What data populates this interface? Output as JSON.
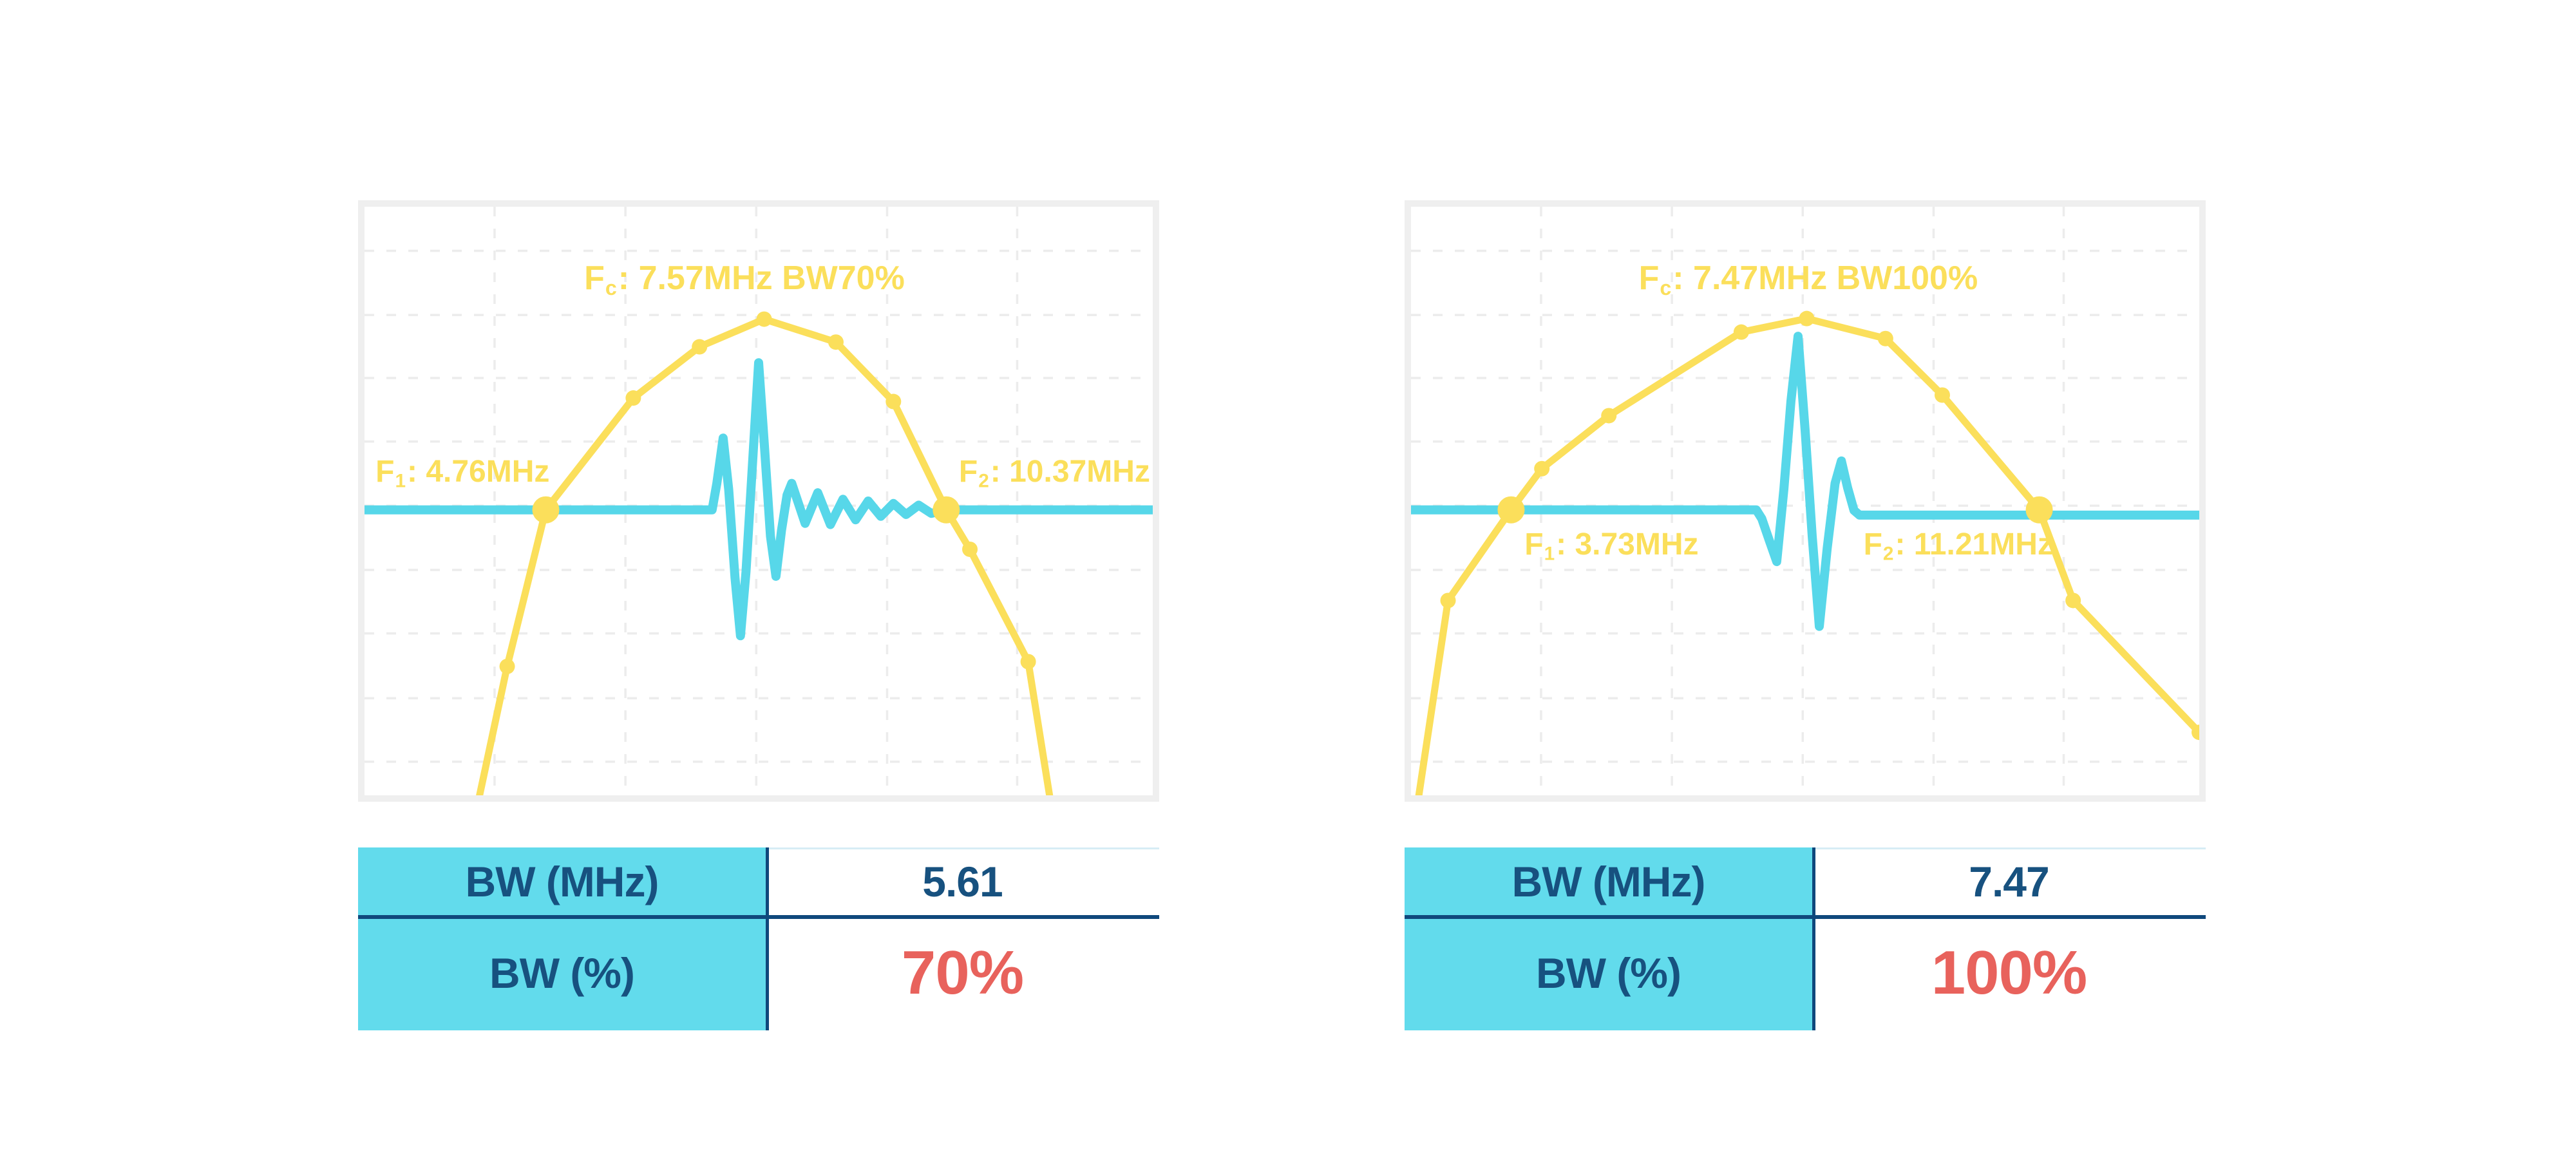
{
  "colors": {
    "yellow": "#FBDF5B",
    "cyan": "#57D7E9",
    "table_cyan": "#62DBEC",
    "dark_blue_text": "#17517F",
    "divider_blue": "#0F487C",
    "highlight_red": "#E8625C",
    "frame_gray": "#EFEFEF",
    "grid_gray": "#ECECEC",
    "table_top_line": "#D7EDF5",
    "background": "#FFFFFF"
  },
  "chart_data": [
    {
      "type": "line",
      "title": "Fc: 7.57MHz BW70%",
      "title_parts": {
        "prefix": "F",
        "sub": "c",
        "rest": ": 7.57MHz BW70%"
      },
      "f1_parts": {
        "prefix": "F",
        "sub": "1",
        "rest": ": 4.76MHz"
      },
      "f2_parts": {
        "prefix": "F",
        "sub": "2",
        "rest": ": 10.37MHz"
      },
      "center_frequency_mhz": 7.57,
      "f1_mhz": 4.76,
      "f2_mhz": 10.37,
      "bandwidth_mhz": 5.61,
      "bandwidth_pct": 70,
      "xlabel": "",
      "ylabel": "",
      "grid": true,
      "legend": false,
      "series": [
        {
          "name": "spectrum",
          "color_key": "yellow",
          "points": [
            [
              14.6,
              100
            ],
            [
              18.1,
              78.1
            ],
            [
              23.0,
              51.5
            ],
            [
              34.1,
              32.5
            ],
            [
              42.5,
              23.8
            ],
            [
              50.7,
              19.1
            ],
            [
              59.8,
              23.0
            ],
            [
              67.1,
              33.1
            ],
            [
              73.8,
              51.5
            ],
            [
              76.8,
              58.2
            ],
            [
              84.2,
              77.3
            ],
            [
              86.9,
              100
            ]
          ],
          "markers": [
            {
              "x": 18.1,
              "y": 78.1,
              "size": "small"
            },
            {
              "x": 23.0,
              "y": 51.5,
              "size": "big"
            },
            {
              "x": 34.1,
              "y": 32.5,
              "size": "small"
            },
            {
              "x": 42.5,
              "y": 23.8,
              "size": "small"
            },
            {
              "x": 50.7,
              "y": 19.1,
              "size": "small"
            },
            {
              "x": 59.8,
              "y": 23.0,
              "size": "small"
            },
            {
              "x": 67.1,
              "y": 33.1,
              "size": "small"
            },
            {
              "x": 73.8,
              "y": 51.5,
              "size": "big"
            },
            {
              "x": 76.8,
              "y": 58.2,
              "size": "small"
            },
            {
              "x": 84.2,
              "y": 77.3,
              "size": "small"
            }
          ]
        },
        {
          "name": "pulse-waveform",
          "color_key": "cyan",
          "points": [
            [
              0,
              51.5
            ],
            [
              44.1,
              51.5
            ],
            [
              44.7,
              47
            ],
            [
              45.5,
              39.3
            ],
            [
              46.2,
              48
            ],
            [
              47.0,
              63
            ],
            [
              47.7,
              72.9
            ],
            [
              48.4,
              62
            ],
            [
              49.3,
              42
            ],
            [
              50.0,
              26.5
            ],
            [
              50.7,
              40
            ],
            [
              51.5,
              56
            ],
            [
              52.2,
              62.8
            ],
            [
              52.9,
              55
            ],
            [
              53.6,
              49
            ],
            [
              54.2,
              47.0
            ],
            [
              55.9,
              53.8
            ],
            [
              57.5,
              48.6
            ],
            [
              59.1,
              54.0
            ],
            [
              60.7,
              49.7
            ],
            [
              62.3,
              53.2
            ],
            [
              63.9,
              50.0
            ],
            [
              65.5,
              52.6
            ],
            [
              67.1,
              50.4
            ],
            [
              68.7,
              52.3
            ],
            [
              70.3,
              50.7
            ],
            [
              71.9,
              52.1
            ],
            [
              73.8,
              51.5
            ],
            [
              100,
              51.5
            ]
          ],
          "markers": []
        }
      ],
      "table": {
        "rows": [
          {
            "label": "BW (MHz)",
            "value": "5.61",
            "highlight": false
          },
          {
            "label": "BW (%)",
            "value": "70%",
            "highlight": true
          }
        ]
      }
    },
    {
      "type": "line",
      "title": "Fc: 7.47MHz BW100%",
      "title_parts": {
        "prefix": "F",
        "sub": "c",
        "rest": ": 7.47MHz BW100%"
      },
      "f1_parts": {
        "prefix": "F",
        "sub": "1",
        "rest": ": 3.73MHz"
      },
      "f2_parts": {
        "prefix": "F",
        "sub": "2",
        "rest": ": 11.21MHz"
      },
      "center_frequency_mhz": 7.47,
      "f1_mhz": 3.73,
      "f2_mhz": 11.21,
      "bandwidth_mhz": 7.47,
      "bandwidth_pct": 100,
      "xlabel": "",
      "ylabel": "",
      "grid": true,
      "legend": false,
      "series": [
        {
          "name": "spectrum",
          "color_key": "yellow",
          "points": [
            [
              1.0,
              100
            ],
            [
              4.7,
              66.9
            ],
            [
              12.7,
              51.5
            ],
            [
              16.6,
              44.5
            ],
            [
              25.1,
              35.5
            ],
            [
              41.9,
              21.3
            ],
            [
              50.2,
              19.0
            ],
            [
              60.2,
              22.4
            ],
            [
              67.4,
              32.0
            ],
            [
              79.7,
              51.5
            ],
            [
              84.0,
              66.9
            ],
            [
              100,
              89.3
            ]
          ],
          "markers": [
            {
              "x": 4.7,
              "y": 66.9,
              "size": "small"
            },
            {
              "x": 12.7,
              "y": 51.5,
              "size": "big"
            },
            {
              "x": 16.6,
              "y": 44.5,
              "size": "small"
            },
            {
              "x": 25.1,
              "y": 35.5,
              "size": "small"
            },
            {
              "x": 41.9,
              "y": 21.3,
              "size": "small"
            },
            {
              "x": 50.2,
              "y": 19.0,
              "size": "small"
            },
            {
              "x": 60.2,
              "y": 22.4,
              "size": "small"
            },
            {
              "x": 67.4,
              "y": 32.0,
              "size": "small"
            },
            {
              "x": 79.7,
              "y": 51.5,
              "size": "big"
            },
            {
              "x": 84.0,
              "y": 66.9,
              "size": "small"
            },
            {
              "x": 100,
              "y": 89.3,
              "size": "small"
            }
          ]
        },
        {
          "name": "pulse-waveform",
          "color_key": "cyan",
          "points": [
            [
              0,
              51.5
            ],
            [
              43.8,
              51.5
            ],
            [
              44.5,
              53.0
            ],
            [
              45.4,
              56.5
            ],
            [
              46.4,
              60.3
            ],
            [
              47.3,
              48
            ],
            [
              48.2,
              33
            ],
            [
              49.1,
              22.0
            ],
            [
              50.0,
              38
            ],
            [
              50.9,
              56
            ],
            [
              51.8,
              71.3
            ],
            [
              52.8,
              58
            ],
            [
              53.8,
              47
            ],
            [
              54.6,
              43.2
            ],
            [
              55.4,
              47.8
            ],
            [
              56.2,
              51.6
            ],
            [
              56.9,
              52.4
            ],
            [
              100,
              52.4
            ]
          ],
          "markers": []
        }
      ],
      "table": {
        "rows": [
          {
            "label": "BW (MHz)",
            "value": "7.47",
            "highlight": false
          },
          {
            "label": "BW (%)",
            "value": "100%",
            "highlight": true
          }
        ]
      }
    }
  ]
}
